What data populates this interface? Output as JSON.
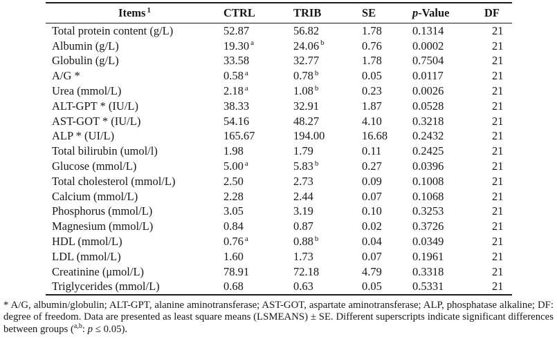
{
  "table": {
    "columns": [
      {
        "key": "item",
        "label": "Items",
        "sup": "1"
      },
      {
        "key": "ctrl",
        "label": "CTRL"
      },
      {
        "key": "trib",
        "label": "TRIB"
      },
      {
        "key": "se",
        "label": "SE"
      },
      {
        "key": "p",
        "label": "-Value",
        "italic_prefix": "p"
      },
      {
        "key": "df",
        "label": "DF"
      }
    ],
    "rows": [
      [
        {
          "v": "Total protein content (g/L)"
        },
        {
          "v": "52.87"
        },
        {
          "v": "56.82"
        },
        {
          "v": "1.78"
        },
        {
          "v": "0.1314"
        },
        {
          "v": "21"
        }
      ],
      [
        {
          "v": "Albumin (g/L)"
        },
        {
          "v": "19.30",
          "sup": "a"
        },
        {
          "v": "24.06",
          "sup": "b"
        },
        {
          "v": "0.76"
        },
        {
          "v": "0.0002"
        },
        {
          "v": "21"
        }
      ],
      [
        {
          "v": "Globulin (g/L)"
        },
        {
          "v": "33.58"
        },
        {
          "v": "32.77"
        },
        {
          "v": "1.78"
        },
        {
          "v": "0.7504"
        },
        {
          "v": "21"
        }
      ],
      [
        {
          "v": "A/G *"
        },
        {
          "v": "0.58",
          "sup": "a"
        },
        {
          "v": "0.78",
          "sup": "b"
        },
        {
          "v": "0.05"
        },
        {
          "v": "0.0117"
        },
        {
          "v": "21"
        }
      ],
      [
        {
          "v": "Urea (mmol/L)"
        },
        {
          "v": "2.18",
          "sup": "a"
        },
        {
          "v": "1.08",
          "sup": "b"
        },
        {
          "v": "0.23"
        },
        {
          "v": "0.0026"
        },
        {
          "v": "21"
        }
      ],
      [
        {
          "v": "ALT-GPT * (IU/L)"
        },
        {
          "v": "38.33"
        },
        {
          "v": "32.91"
        },
        {
          "v": "1.87"
        },
        {
          "v": "0.0528"
        },
        {
          "v": "21"
        }
      ],
      [
        {
          "v": "AST-GOT * (IU/L)"
        },
        {
          "v": "54.16"
        },
        {
          "v": "48.27"
        },
        {
          "v": "4.10"
        },
        {
          "v": "0.3218"
        },
        {
          "v": "21"
        }
      ],
      [
        {
          "v": "ALP * (UI/L)"
        },
        {
          "v": "165.67"
        },
        {
          "v": "194.00"
        },
        {
          "v": "16.68"
        },
        {
          "v": "0.2432"
        },
        {
          "v": "21"
        }
      ],
      [
        {
          "v": "Total bilirubin (umol/l)"
        },
        {
          "v": "1.98"
        },
        {
          "v": "1.79"
        },
        {
          "v": "0.11"
        },
        {
          "v": "0.2425"
        },
        {
          "v": "21"
        }
      ],
      [
        {
          "v": "Glucose (mmol/L)"
        },
        {
          "v": "5.00",
          "sup": "a"
        },
        {
          "v": "5.83",
          "sup": "b"
        },
        {
          "v": "0.27"
        },
        {
          "v": "0.0396"
        },
        {
          "v": "21"
        }
      ],
      [
        {
          "v": "Total cholesterol (mmol/L)"
        },
        {
          "v": "2.50"
        },
        {
          "v": "2.73"
        },
        {
          "v": "0.09"
        },
        {
          "v": "0.1008"
        },
        {
          "v": "21"
        }
      ],
      [
        {
          "v": "Calcium (mmol/L)"
        },
        {
          "v": "2.28"
        },
        {
          "v": "2.44"
        },
        {
          "v": "0.07"
        },
        {
          "v": "0.1068"
        },
        {
          "v": "21"
        }
      ],
      [
        {
          "v": "Phosphorus (mmol/L)"
        },
        {
          "v": "3.05"
        },
        {
          "v": "3.19"
        },
        {
          "v": "0.10"
        },
        {
          "v": "0.3253"
        },
        {
          "v": "21"
        }
      ],
      [
        {
          "v": "Magnesium (mmol/L)"
        },
        {
          "v": "0.84"
        },
        {
          "v": "0.87"
        },
        {
          "v": "0.02"
        },
        {
          "v": "0.3726"
        },
        {
          "v": "21"
        }
      ],
      [
        {
          "v": "HDL (mmol/L)"
        },
        {
          "v": "0.76",
          "sup": "a"
        },
        {
          "v": "0.88",
          "sup": "b"
        },
        {
          "v": "0.04"
        },
        {
          "v": "0.0349"
        },
        {
          "v": "21"
        }
      ],
      [
        {
          "v": "LDL (mmol/L)"
        },
        {
          "v": "1.60"
        },
        {
          "v": "1.73"
        },
        {
          "v": "0.07"
        },
        {
          "v": "0.1961"
        },
        {
          "v": "21"
        }
      ],
      [
        {
          "v": "Creatinine (μmol/L)"
        },
        {
          "v": "78.91"
        },
        {
          "v": "72.18"
        },
        {
          "v": "4.79"
        },
        {
          "v": "0.3318"
        },
        {
          "v": "21"
        }
      ],
      [
        {
          "v": "Triglycerides (mmol/L)"
        },
        {
          "v": "0.68"
        },
        {
          "v": "0.63"
        },
        {
          "v": "0.05"
        },
        {
          "v": "0.5331"
        },
        {
          "v": "21"
        }
      ]
    ]
  },
  "footnote": {
    "segments": [
      {
        "text": "* A/G, albumin/globulin; ALT-GPT, alanine aminotransferase; AST-GOT, aspartate aminotransferase; ALP, phosphatase alkaline; DF: degree of freedom. Data are presented as least square means (LSMEANS) ± SE. Different superscripts indicate significant differences between groups ("
      },
      {
        "text": "a,b",
        "style": "sup"
      },
      {
        "text": ": "
      },
      {
        "text": "p",
        "style": "italic"
      },
      {
        "text": " ≤ 0.05)."
      }
    ]
  }
}
